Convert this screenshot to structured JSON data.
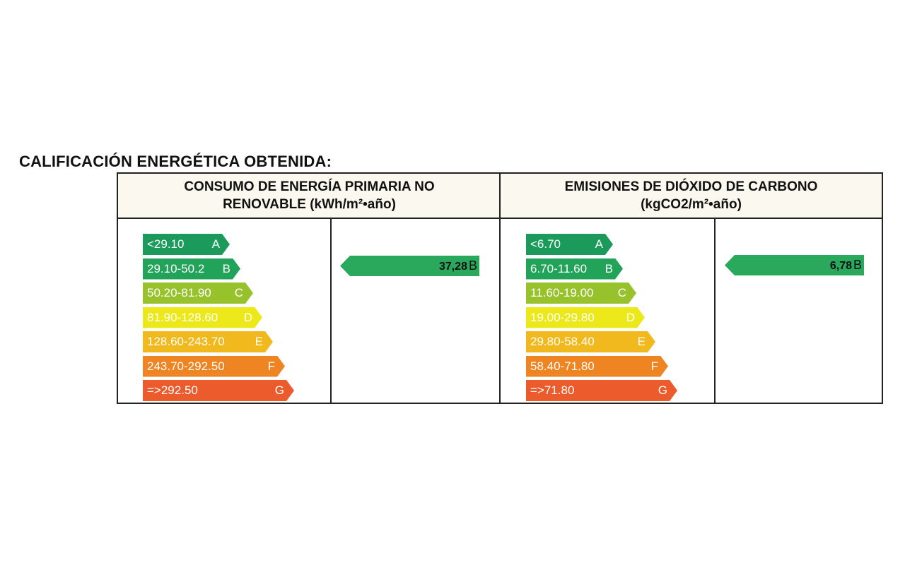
{
  "title": "CALIFICACIÓN ENERGÉTICA OBTENIDA:",
  "energy": {
    "header_line1": "CONSUMO  DE ENERGÍA PRIMARIA NO",
    "header_line2": "RENOVABLE (kWh/m²•año)",
    "scale": [
      {
        "range": "<29.10",
        "class": "A",
        "color": "#1b9a5c"
      },
      {
        "range": "29.10-50.2",
        "class": "B",
        "color": "#22a35a"
      },
      {
        "range": "50.20-81.90",
        "class": "C",
        "color": "#98c22c"
      },
      {
        "range": "81.90-128.60",
        "class": "D",
        "color": "#ece81a"
      },
      {
        "range": "128.60-243.70",
        "class": "E",
        "color": "#f2b91e"
      },
      {
        "range": "243.70-292.50",
        "class": "F",
        "color": "#ef8522"
      },
      {
        "range": "=>292.50",
        "class": "G",
        "color": "#ec5b2c"
      }
    ],
    "result": {
      "value": "37,28",
      "class": "B"
    }
  },
  "co2": {
    "header_line1": "EMISIONES DE DIÓXIDO DE CARBONO",
    "header_line2": "(kgCO2/m²•año)",
    "scale": [
      {
        "range": "<6.70",
        "class": "A",
        "color": "#1b9a5c"
      },
      {
        "range": "6.70-11.60",
        "class": "B",
        "color": "#22a35a"
      },
      {
        "range": "11.60-19.00",
        "class": "C",
        "color": "#98c22c"
      },
      {
        "range": "19.00-29.80",
        "class": "D",
        "color": "#ece81a"
      },
      {
        "range": "29.80-58.40",
        "class": "E",
        "color": "#f2b91e"
      },
      {
        "range": "58.40-71.80",
        "class": "F",
        "color": "#ef8522"
      },
      {
        "range": "=>71.80",
        "class": "G",
        "color": "#ec5b2c"
      }
    ],
    "result": {
      "value": "6,78",
      "class": "B"
    }
  }
}
